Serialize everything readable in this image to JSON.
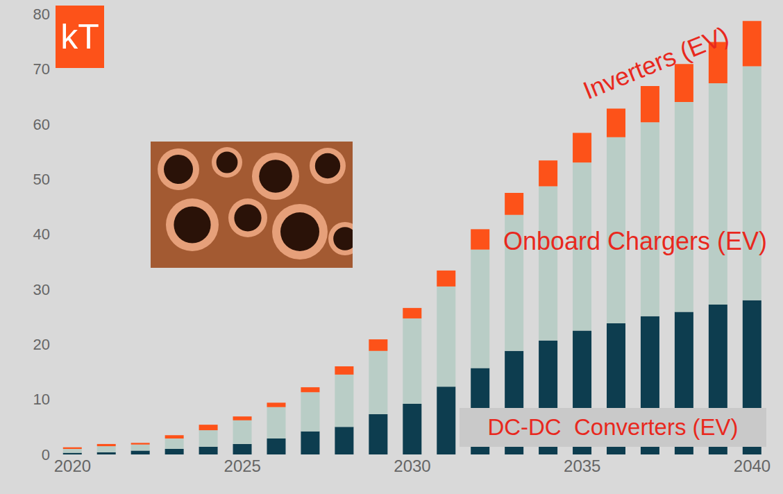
{
  "chart_data": {
    "type": "bar",
    "stacked": true,
    "logo_text": "kT",
    "categories": [
      "2020",
      null,
      null,
      null,
      null,
      "2025",
      null,
      null,
      null,
      null,
      "2030",
      null,
      null,
      null,
      null,
      "2035",
      null,
      null,
      null,
      null,
      "2040"
    ],
    "series": [
      {
        "name": "DC-DC  Converters (EV)",
        "color": "#0d3d4f",
        "values": [
          0.3,
          0.4,
          0.7,
          1.0,
          1.4,
          1.9,
          2.9,
          4.2,
          5.0,
          7.3,
          9.2,
          12.3,
          15.7,
          18.8,
          20.7,
          22.5,
          23.8,
          25.1,
          25.9,
          27.2,
          28.0
        ]
      },
      {
        "name": "Onboard Chargers (EV)",
        "color": "#b9cdc6",
        "values": [
          0.7,
          1.1,
          1.1,
          1.9,
          3.0,
          4.3,
          5.7,
          7.1,
          9.5,
          11.5,
          15.5,
          18.2,
          21.5,
          24.7,
          28.0,
          30.5,
          33.8,
          35.2,
          38.1,
          40.2,
          42.5
        ]
      },
      {
        "name": "Inverters (EV)",
        "color": "#fd5219",
        "values": [
          0.3,
          0.4,
          0.3,
          0.6,
          1.0,
          0.7,
          0.8,
          0.9,
          1.5,
          2.1,
          1.9,
          2.9,
          3.7,
          4.0,
          4.7,
          5.4,
          5.2,
          6.6,
          6.9,
          7.5,
          8.2
        ]
      }
    ],
    "ylim": [
      0,
      80
    ],
    "yticks": [
      0,
      10,
      20,
      30,
      40,
      50,
      60,
      70,
      80
    ],
    "grid": false
  }
}
